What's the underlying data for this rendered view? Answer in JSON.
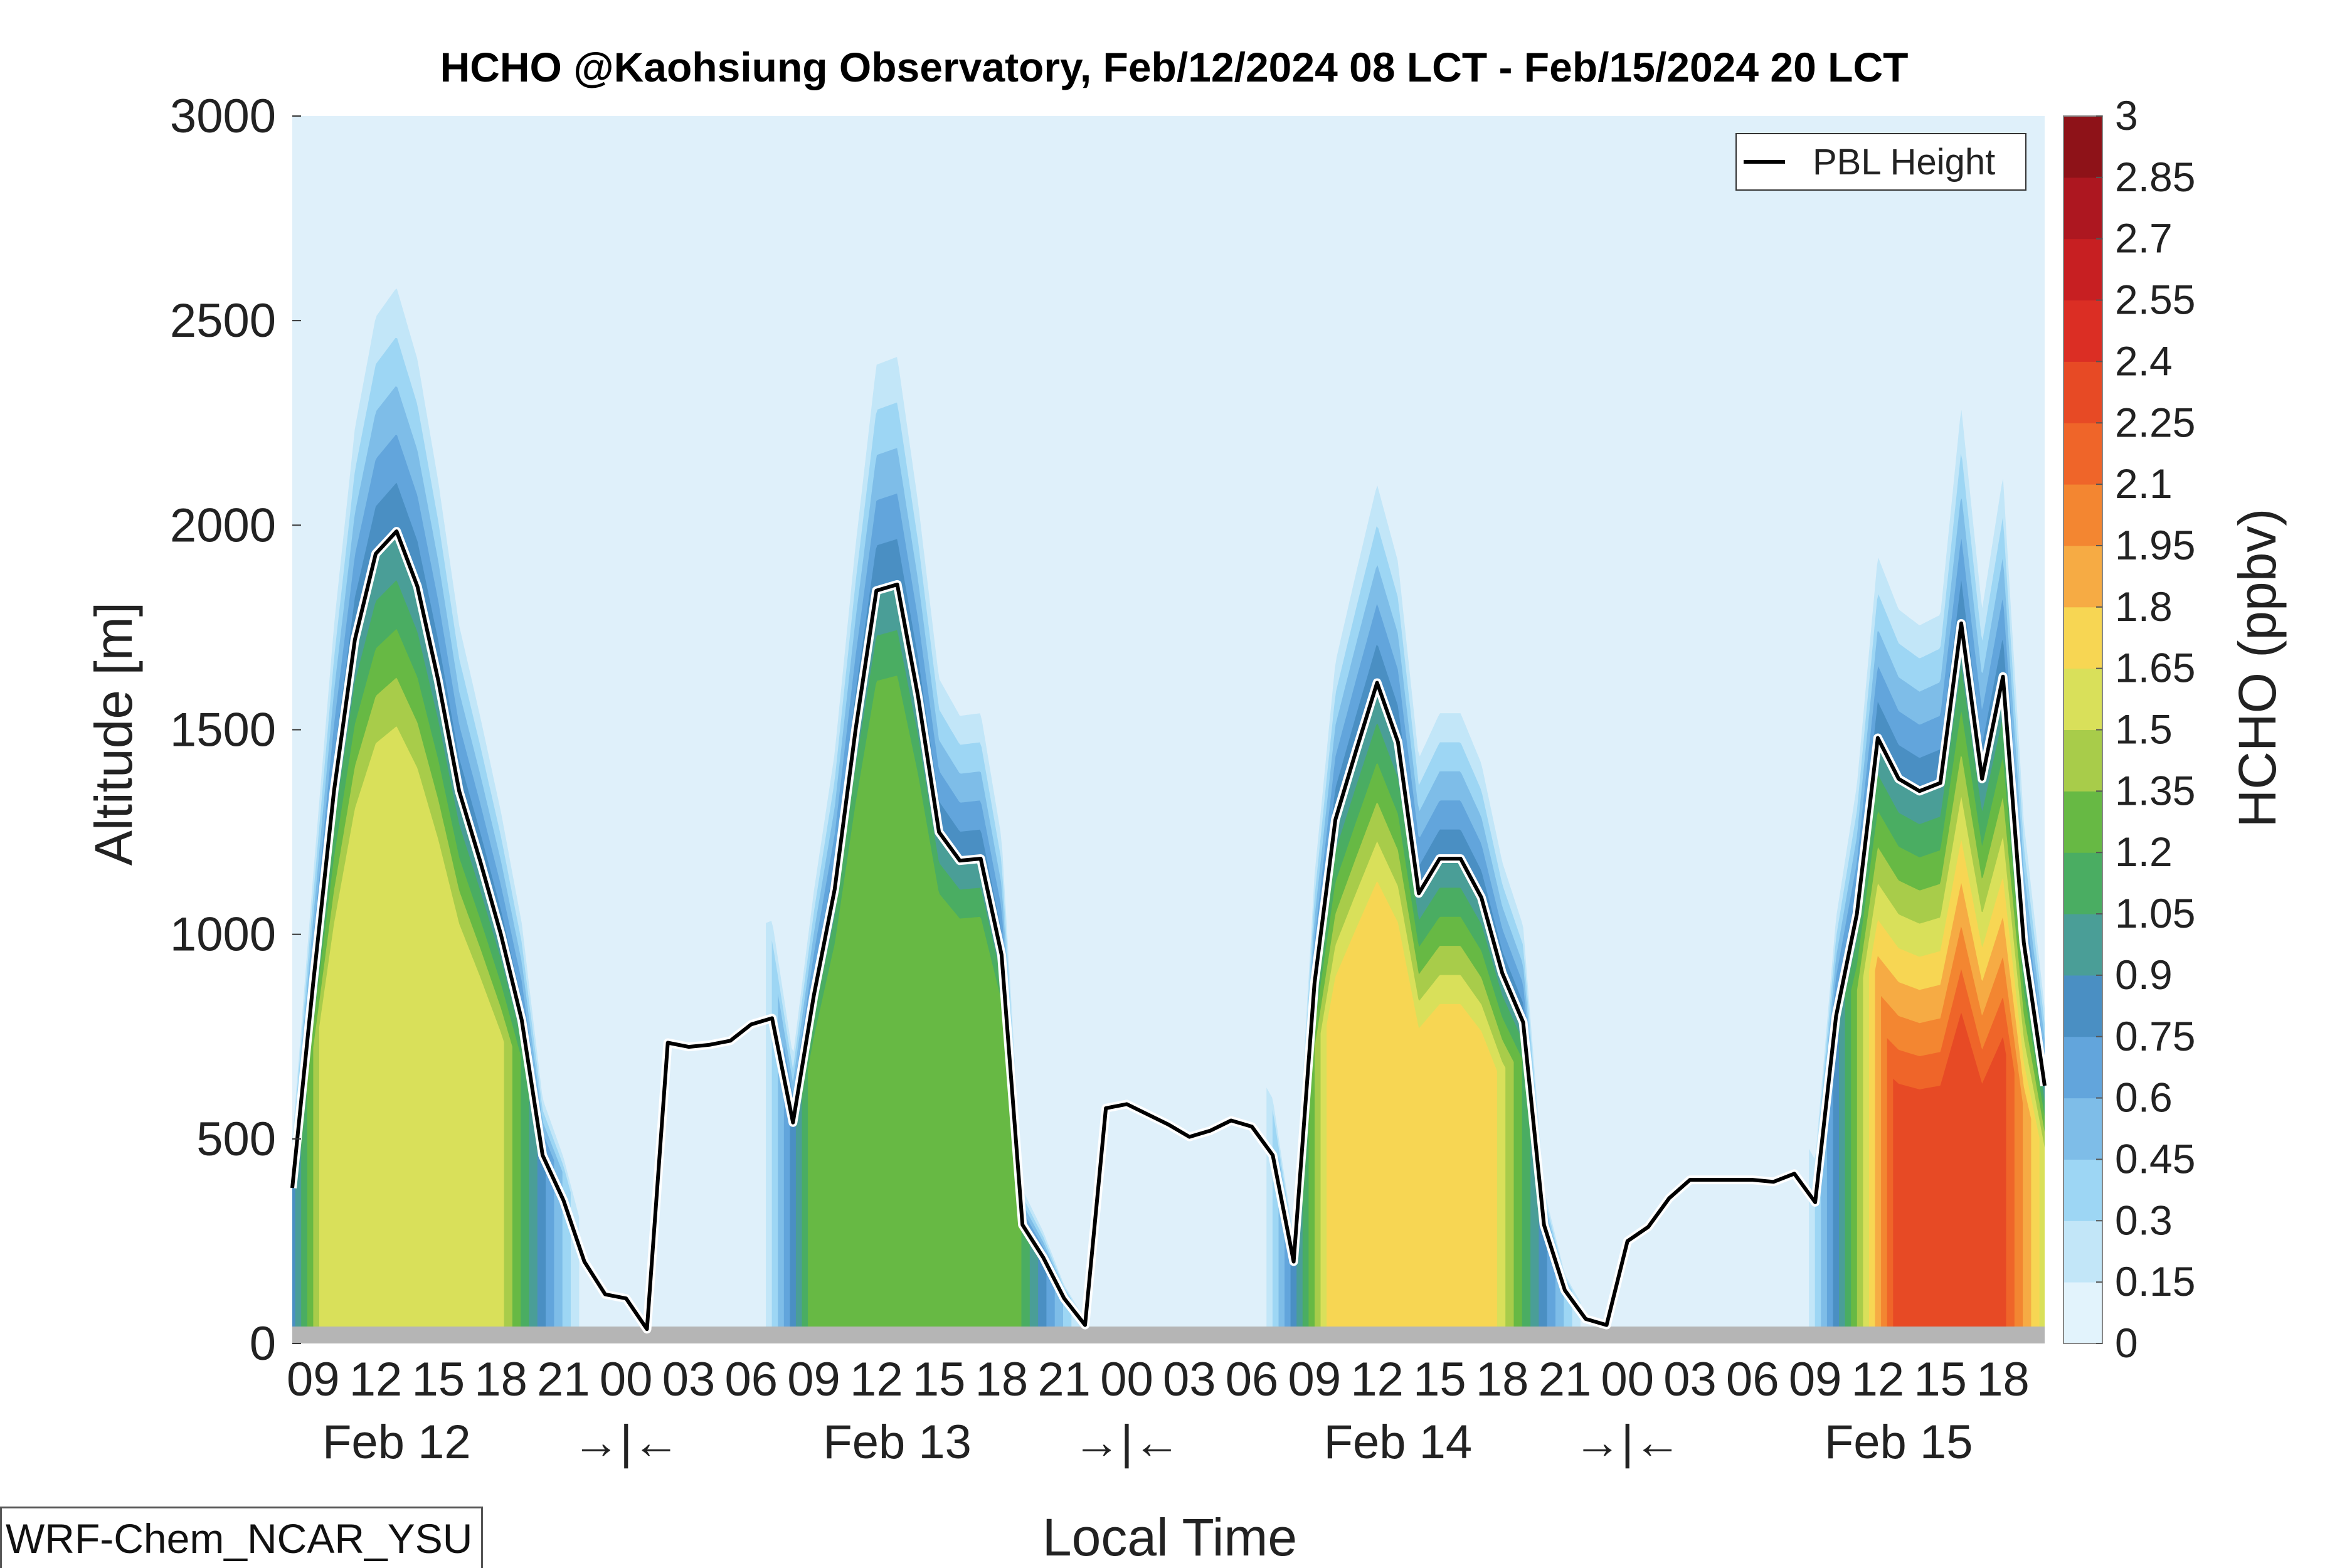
{
  "chart_data": {
    "type": "heatmap",
    "title": "HCHO @Kaohsiung Observatory, Feb/12/2024 08 LCT - Feb/15/2024 20 LCT",
    "xlabel": "Local Time",
    "ylabel": "Altitude [m]",
    "colorbar_label": "HCHO (ppbv)",
    "ylim": [
      0,
      3000
    ],
    "yticks": [
      "0",
      "500",
      "1000",
      "1500",
      "2000",
      "2500",
      "3000"
    ],
    "x_range_hours": [
      0,
      84
    ],
    "x_tick_labels": [
      "09",
      "12",
      "15",
      "18",
      "21",
      "00",
      "03",
      "06",
      "09",
      "12",
      "15",
      "18",
      "21",
      "00",
      "03",
      "06",
      "09",
      "12",
      "15",
      "18",
      "21",
      "00",
      "03",
      "06",
      "09",
      "12",
      "15",
      "18"
    ],
    "day_labels": [
      "Feb 12",
      "Feb 13",
      "Feb 14",
      "Feb 15"
    ],
    "day_separator_label": "→|←",
    "colorbar_ticks": [
      "0",
      "0.15",
      "0.3",
      "0.45",
      "0.6",
      "0.75",
      "0.9",
      "1.05",
      "1.2",
      "1.35",
      "1.5",
      "1.65",
      "1.8",
      "1.95",
      "2.1",
      "2.25",
      "2.4",
      "2.55",
      "2.7",
      "2.85",
      "3"
    ],
    "colorbar_colors": [
      "#ffffff",
      "#e2f3fc",
      "#c2e6f8",
      "#9dd6f4",
      "#7ebde8",
      "#62a5dc",
      "#4a8fc3",
      "#4a9e97",
      "#4aad62",
      "#67b944",
      "#a8cc4a",
      "#d9e05a",
      "#f7d653",
      "#f6ab44",
      "#f38631",
      "#ef6529",
      "#e74a25",
      "#db2e24",
      "#c71f22",
      "#ad1720",
      "#8e1218"
    ],
    "legend": {
      "entries": [
        "PBL Height"
      ],
      "placement": "top-right"
    },
    "series": [
      {
        "name": "PBL Height",
        "type": "line",
        "color": "#000000",
        "x": [
          0,
          1,
          2,
          3,
          4,
          5,
          6,
          7,
          8,
          9,
          10,
          11,
          12,
          13,
          14,
          15,
          16,
          17,
          18,
          19,
          20,
          21,
          22,
          23,
          24,
          25,
          26,
          27,
          28,
          29,
          30,
          31,
          32,
          33,
          34,
          35,
          36,
          37,
          38,
          39,
          40,
          41,
          42,
          43,
          44,
          45,
          46,
          47,
          48,
          49,
          50,
          51,
          52,
          53,
          54,
          55,
          56,
          57,
          58,
          59,
          60,
          61,
          62,
          63,
          64,
          65,
          66,
          67,
          68,
          69,
          70,
          71,
          72,
          73,
          74,
          75,
          76,
          77,
          78,
          79,
          80,
          81,
          82,
          83,
          84
        ],
        "y": [
          380,
          880,
          1350,
          1720,
          1930,
          1985,
          1850,
          1620,
          1350,
          1180,
          1000,
          790,
          460,
          350,
          200,
          120,
          110,
          35,
          735,
          725,
          730,
          740,
          780,
          795,
          540,
          850,
          1110,
          1500,
          1840,
          1855,
          1580,
          1250,
          1180,
          1185,
          950,
          290,
          210,
          110,
          45,
          575,
          585,
          560,
          535,
          505,
          520,
          545,
          530,
          460,
          200,
          880,
          1280,
          1450,
          1615,
          1470,
          1100,
          1185,
          1185,
          1090,
          905,
          785,
          290,
          130,
          60,
          45,
          250,
          285,
          355,
          400,
          400,
          400,
          400,
          395,
          415,
          345,
          800,
          1050,
          1480,
          1380,
          1350,
          1370,
          1760,
          1380,
          1630,
          980,
          630
        ]
      }
    ],
    "filled_contours": [
      {
        "peak_hour": 5,
        "low_dispersion": 0.8,
        "high_dispersion": 0.4
      },
      {
        "peak_hour": 29,
        "low_dispersion": 0.6,
        "high_dispersion": 0.3
      },
      {
        "peak_hour": 53,
        "low_dispersion": 0.75,
        "high_dispersion": 0.35
      },
      {
        "peak_hour": 79,
        "low_dispersion": 0.9,
        "high_dispersion": 0.4
      }
    ],
    "grid": false
  },
  "footer": {
    "model_label": "WRF-Chem_NCAR_YSU"
  }
}
